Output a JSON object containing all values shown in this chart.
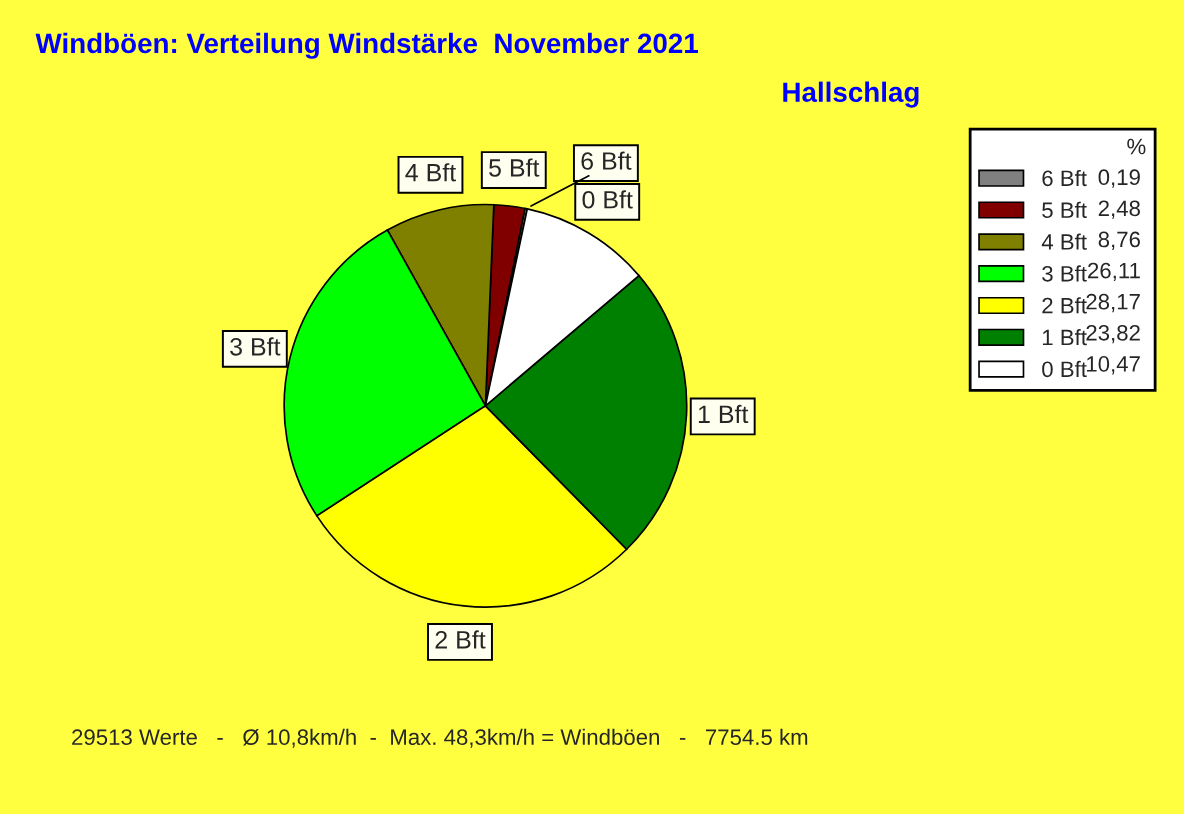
{
  "chart_data": {
    "type": "pie",
    "title": "Windböen: Verteilung Windstärke  November 2021",
    "subtitle": "Hallschlag",
    "legend_title": "%",
    "legend": "right",
    "categories": [
      "6 Bft",
      "5 Bft",
      "4 Bft",
      "3 Bft",
      "2 Bft",
      "1 Bft",
      "0 Bft"
    ],
    "values": [
      0.19,
      2.48,
      8.76,
      26.11,
      28.17,
      23.82,
      10.47
    ],
    "value_labels": [
      "0,19",
      "2,48",
      "8,76",
      "26,11",
      "28,17",
      "23,82",
      "10,47"
    ],
    "colors": [
      "#808080",
      "#800000",
      "#808000",
      "#00ff00",
      "#ffff00",
      "#008000",
      "#ffffff"
    ],
    "annotations": [
      "29513 Werte   -   Ø 10,8km/h  -  Max. 48,3km/h = Windböen   -   7754.5 km"
    ]
  }
}
